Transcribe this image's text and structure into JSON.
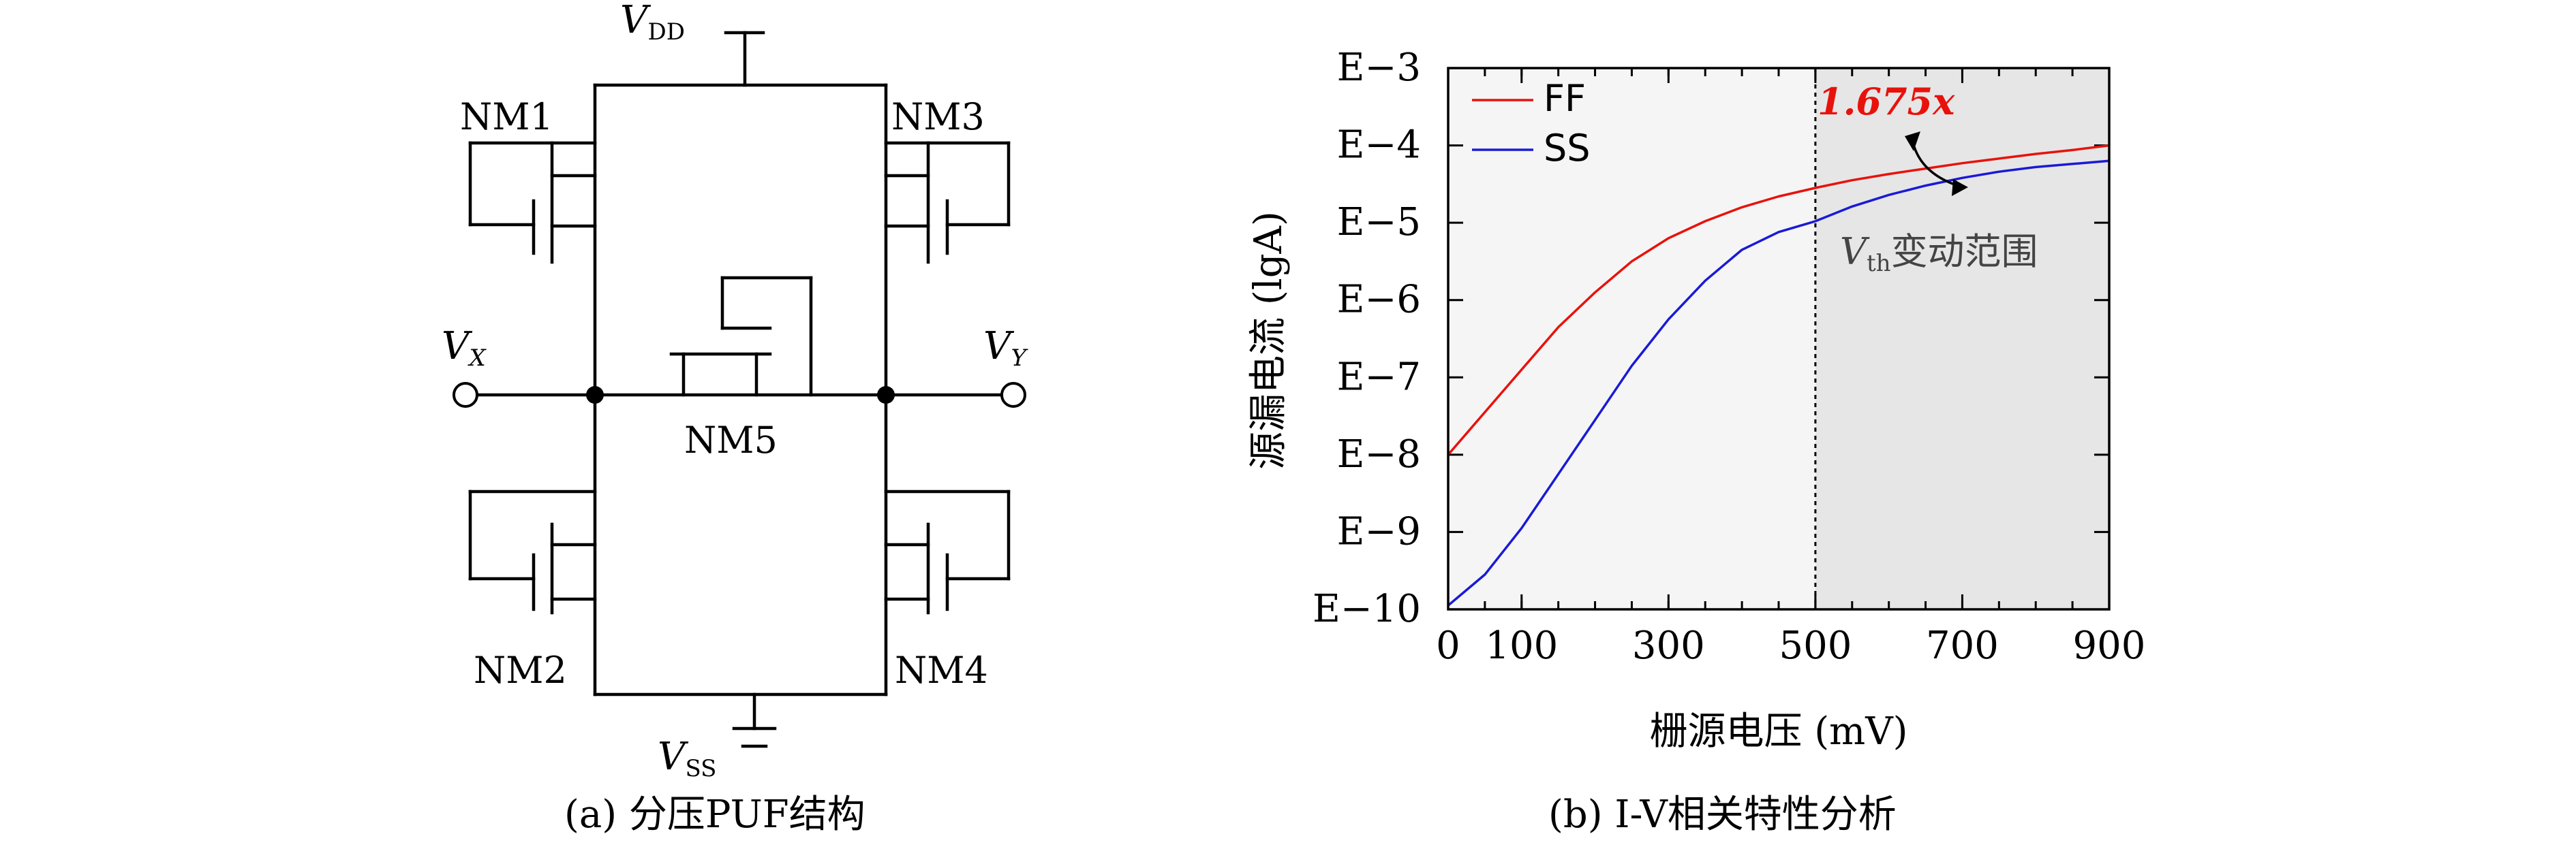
{
  "circuit": {
    "vdd_main": "V",
    "vdd_sub": "DD",
    "vss_main": "V",
    "vss_sub": "SS",
    "vx_main": "V",
    "vx_sub": "X",
    "vy_main": "V",
    "vy_sub": "Y",
    "nm1": "NM1",
    "nm2": "NM2",
    "nm3": "NM3",
    "nm4": "NM4",
    "nm5": "NM5",
    "caption": "(a) 分压PUF结构"
  },
  "chart": {
    "caption": "(b) I-V相关特性分析",
    "annotation_value": "1.675x",
    "vth_main": "V",
    "vth_sub": "th",
    "vth_text": "变动范围",
    "colors": {
      "ff": "#e8120c",
      "ss": "#1a1ad6",
      "shade": "#e6e6e6",
      "light": "#f5f5f5",
      "annotation": "#e8120c"
    }
  },
  "chart_data": {
    "type": "line",
    "title": "",
    "xlabel": "栅源电压 (mV)",
    "ylabel": "源漏电流 (lgA)",
    "xlim": [
      0,
      900
    ],
    "ylim": [
      -10,
      -3
    ],
    "x_ticks": [
      0,
      100,
      300,
      500,
      700,
      900
    ],
    "x_tick_labels": [
      "0",
      "100",
      "300",
      "500",
      "700",
      "900"
    ],
    "y_ticks": [
      -3,
      -4,
      -5,
      -6,
      -7,
      -8,
      -9,
      -10
    ],
    "y_tick_labels": [
      "E−3",
      "E−4",
      "E−5",
      "E−6",
      "E−7",
      "E−8",
      "E−9",
      "E−10"
    ],
    "shaded_region_x": [
      500,
      900
    ],
    "dashed_line_x": 500,
    "legend_position": "top-left",
    "series": [
      {
        "name": "FF",
        "x": [
          0,
          50,
          100,
          150,
          200,
          250,
          300,
          350,
          400,
          450,
          500,
          550,
          600,
          650,
          700,
          750,
          800,
          850,
          900
        ],
        "y": [
          -8.0,
          -7.45,
          -6.9,
          -6.35,
          -5.9,
          -5.5,
          -5.2,
          -4.98,
          -4.8,
          -4.66,
          -4.55,
          -4.45,
          -4.37,
          -4.3,
          -4.23,
          -4.17,
          -4.11,
          -4.06,
          -4.0
        ]
      },
      {
        "name": "SS",
        "x": [
          0,
          50,
          100,
          150,
          200,
          250,
          300,
          350,
          400,
          450,
          500,
          550,
          600,
          650,
          700,
          750,
          800,
          850,
          900
        ],
        "y": [
          -9.95,
          -9.55,
          -8.95,
          -8.25,
          -7.55,
          -6.85,
          -6.25,
          -5.75,
          -5.35,
          -5.12,
          -4.98,
          -4.79,
          -4.64,
          -4.52,
          -4.42,
          -4.34,
          -4.28,
          -4.24,
          -4.2
        ]
      }
    ]
  }
}
